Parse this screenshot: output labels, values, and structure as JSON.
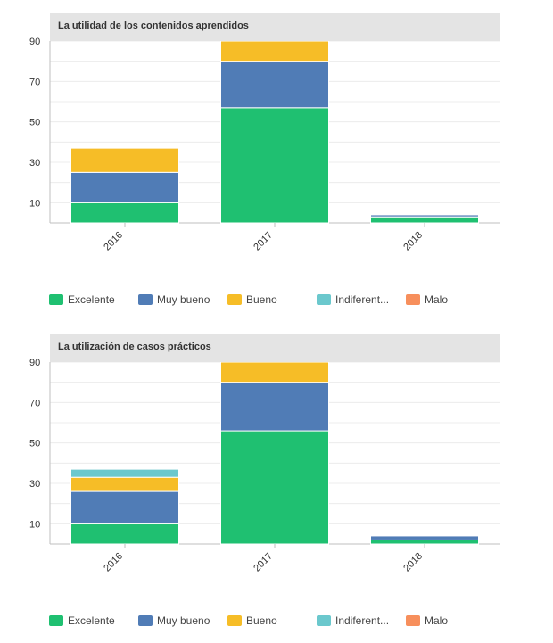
{
  "chart_data": [
    {
      "type": "bar",
      "stacked": true,
      "title": "La utilidad de los contenidos aprendidos",
      "categories": [
        "2016",
        "2017",
        "2018"
      ],
      "y_ticks": [
        "10",
        "30",
        "50",
        "70",
        "90"
      ],
      "ylim": [
        0,
        90
      ],
      "series": [
        {
          "name": "Excelente",
          "color": "#1fc071",
          "values": [
            10,
            57,
            3
          ]
        },
        {
          "name": "Muy bueno",
          "color": "#507cb6",
          "values": [
            15,
            23,
            1
          ]
        },
        {
          "name": "Bueno",
          "color": "#f6bd27",
          "values": [
            12,
            10,
            0
          ]
        },
        {
          "name": "Indiferent...",
          "color": "#6bc8cd",
          "values": [
            0,
            0,
            0
          ]
        },
        {
          "name": "Malo",
          "color": "#f78f5c",
          "values": [
            0,
            0,
            0
          ]
        }
      ]
    },
    {
      "type": "bar",
      "stacked": true,
      "title": "La utilización de casos prácticos",
      "categories": [
        "2016",
        "2017",
        "2018"
      ],
      "y_ticks": [
        "10",
        "30",
        "50",
        "70",
        "90"
      ],
      "ylim": [
        0,
        90
      ],
      "series": [
        {
          "name": "Excelente",
          "color": "#1fc071",
          "values": [
            10,
            56,
            2
          ]
        },
        {
          "name": "Muy bueno",
          "color": "#507cb6",
          "values": [
            16,
            24,
            2
          ]
        },
        {
          "name": "Bueno",
          "color": "#f6bd27",
          "values": [
            7,
            10,
            0
          ]
        },
        {
          "name": "Indiferent...",
          "color": "#6bc8cd",
          "values": [
            4,
            0,
            0
          ]
        },
        {
          "name": "Malo",
          "color": "#f78f5c",
          "values": [
            0,
            0,
            0
          ]
        }
      ]
    }
  ]
}
